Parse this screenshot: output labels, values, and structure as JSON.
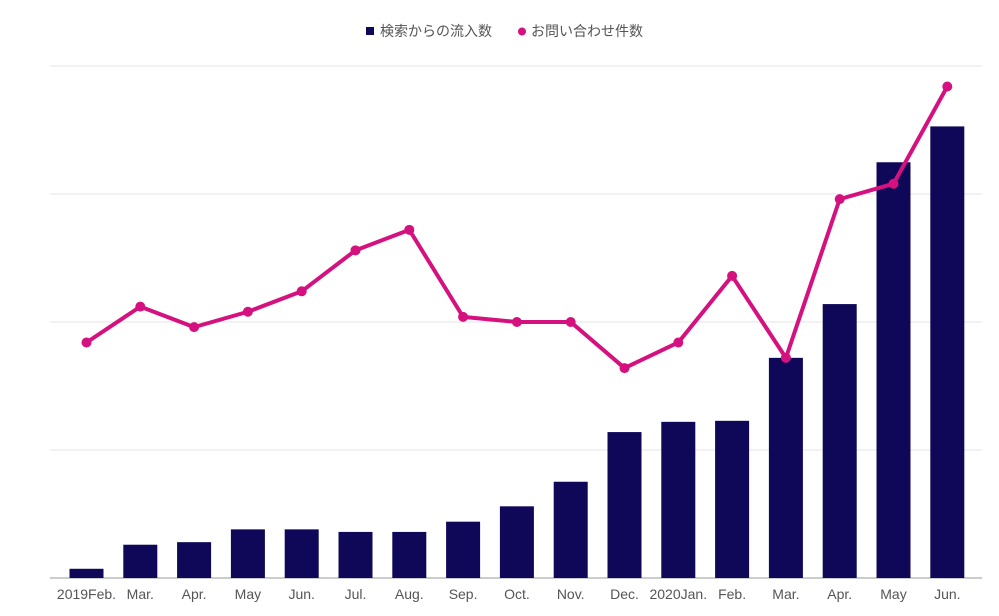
{
  "chart_data": {
    "type": "bar",
    "title": "",
    "xlabel": "",
    "ylabel": "",
    "ylim": [
      0,
      100
    ],
    "categories": [
      "2019Feb.",
      "Mar.",
      "Apr.",
      "May",
      "Jun.",
      "Jul.",
      "Aug.",
      "Sep.",
      "Oct.",
      "Nov.",
      "Dec.",
      "2020Jan.",
      "Feb.",
      "Mar.",
      "Apr.",
      "May",
      "Jun."
    ],
    "series": [
      {
        "name": "検索からの流入数",
        "type": "bar",
        "color": "#0f0757",
        "values": [
          1.8,
          6.5,
          7.0,
          9.5,
          9.5,
          9.0,
          9.0,
          11.0,
          14.0,
          18.8,
          28.5,
          30.5,
          30.7,
          43.0,
          53.5,
          81.2,
          88.2
        ]
      },
      {
        "name": "お問い合わせ件数",
        "type": "line",
        "color": "#d4117e",
        "values": [
          46.0,
          53.0,
          49.0,
          52.0,
          56.0,
          64.0,
          68.0,
          51.0,
          50.0,
          50.0,
          41.0,
          46.0,
          59.0,
          43.0,
          74.0,
          77.0,
          96.0
        ]
      }
    ],
    "grid": true,
    "legend": "top-center"
  }
}
